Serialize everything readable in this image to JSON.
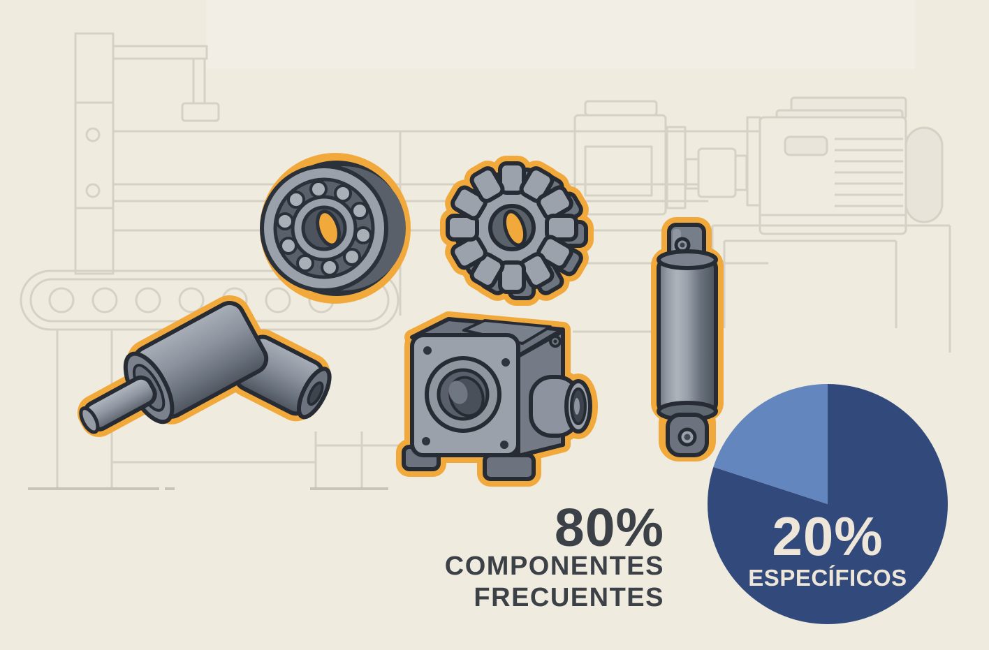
{
  "stat_main": {
    "percent": "80%",
    "line1": "COMPONENTES",
    "line2": "FRECUENTES"
  },
  "pie_overlay": {
    "percent": "20%",
    "label": "ESPECÍFICOS"
  },
  "chart_data": {
    "type": "pie",
    "title": "",
    "slices": [
      {
        "label": "COMPONENTES FRECUENTES",
        "value": 80,
        "color": "#314A7B"
      },
      {
        "label": "ESPECÍFICOS",
        "value": 20,
        "color": "#6286BD"
      }
    ],
    "start_angle_deg": -90,
    "direction": "clockwise",
    "legend_position": "labels-inside-largest-slice"
  },
  "colors": {
    "background": "#EFEBDE",
    "background_top_band": "#F2EEE6",
    "lineart": "#D5D1C5",
    "accent_orange": "#F2A93B",
    "outline_dark": "#272C34",
    "part_gray_light": "#9BA2AC",
    "part_gray_mid": "#7A828D",
    "part_gray_dark": "#4D545E",
    "headline_text": "#3C4148",
    "pie_dark_blue": "#314A7B",
    "pie_light_blue": "#6286BD",
    "pie_text": "#EEE7D9"
  },
  "illustrations": {
    "components": [
      "ball-bearing-illustration",
      "gear-illustration",
      "hydraulic-cylinder-illustration",
      "shaft-coupling-illustration",
      "gearbox-illustration"
    ],
    "background_machinery": [
      "factory-post",
      "overhead-arm",
      "conveyor-belt",
      "center-machine",
      "motor-coupling",
      "electric-motor",
      "work-bench"
    ]
  }
}
